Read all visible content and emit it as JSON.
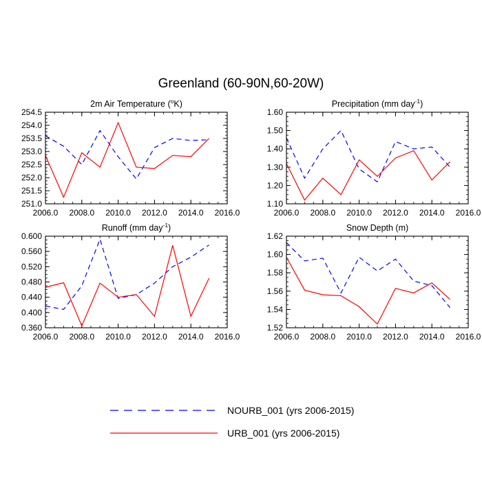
{
  "figure": {
    "title": "Greenland (60-90N,60-20W)"
  },
  "chart_data": [
    {
      "type": "line",
      "title": "2m Air Temperature (",
      "title_sup": "o",
      "title_tail": "K)",
      "x": [
        2006,
        2007,
        2008,
        2009,
        2010,
        2011,
        2012,
        2013,
        2014,
        2015
      ],
      "xlim": [
        2006,
        2016
      ],
      "xticks": [
        "2006.0",
        "2008.0",
        "2010.0",
        "2012.0",
        "2014.0",
        "2016.0"
      ],
      "ylim": [
        251.0,
        254.5
      ],
      "yticks": [
        "251.0",
        "251.5",
        "252.0",
        "252.5",
        "253.0",
        "253.5",
        "254.0",
        "254.5"
      ],
      "series": [
        {
          "name": "NOURB_001 (yrs 2006-2015)",
          "values": [
            253.6,
            253.2,
            252.5,
            253.8,
            252.8,
            251.95,
            253.15,
            253.5,
            253.42,
            253.45
          ]
        },
        {
          "name": "URB_001 (yrs 2006-2015)",
          "values": [
            252.85,
            251.25,
            252.95,
            252.4,
            254.1,
            252.4,
            252.35,
            252.85,
            252.8,
            253.5
          ]
        }
      ]
    },
    {
      "type": "line",
      "title": "Precipitation (mm day",
      "title_sup": "-1",
      "title_tail": ")",
      "x": [
        2006,
        2007,
        2008,
        2009,
        2010,
        2011,
        2012,
        2013,
        2014,
        2015
      ],
      "xlim": [
        2006,
        2016
      ],
      "xticks": [
        "2006.0",
        "2008.0",
        "2010.0",
        "2012.0",
        "2014.0",
        "2016.0"
      ],
      "ylim": [
        1.1,
        1.6
      ],
      "yticks": [
        "1.10",
        "1.20",
        "1.30",
        "1.40",
        "1.50",
        "1.60"
      ],
      "series": [
        {
          "name": "NOURB_001 (yrs 2006-2015)",
          "values": [
            1.46,
            1.24,
            1.4,
            1.5,
            1.29,
            1.22,
            1.44,
            1.4,
            1.41,
            1.3
          ]
        },
        {
          "name": "URB_001 (yrs 2006-2015)",
          "values": [
            1.32,
            1.12,
            1.24,
            1.15,
            1.34,
            1.25,
            1.35,
            1.39,
            1.23,
            1.33
          ]
        }
      ]
    },
    {
      "type": "line",
      "title": "Runoff (mm day",
      "title_sup": "-1",
      "title_tail": ")",
      "x": [
        2006,
        2007,
        2008,
        2009,
        2010,
        2011,
        2012,
        2013,
        2014,
        2015
      ],
      "xlim": [
        2006,
        2016
      ],
      "xticks": [
        "2006.0",
        "2008.0",
        "2010.0",
        "2012.0",
        "2014.0",
        "2016.0"
      ],
      "ylim": [
        0.36,
        0.6
      ],
      "yticks": [
        "0.360",
        "0.400",
        "0.440",
        "0.480",
        "0.520",
        "0.560",
        "0.600"
      ],
      "series": [
        {
          "name": "NOURB_001 (yrs 2006-2015)",
          "values": [
            0.417,
            0.408,
            0.47,
            0.592,
            0.437,
            0.447,
            0.477,
            0.52,
            0.545,
            0.577
          ]
        },
        {
          "name": "URB_001 (yrs 2006-2015)",
          "values": [
            0.466,
            0.478,
            0.365,
            0.477,
            0.44,
            0.447,
            0.39,
            0.576,
            0.39,
            0.49
          ]
        }
      ]
    },
    {
      "type": "line",
      "title": "Snow Depth (m)",
      "title_sup": "",
      "title_tail": "",
      "x": [
        2006,
        2007,
        2008,
        2009,
        2010,
        2011,
        2012,
        2013,
        2014,
        2015
      ],
      "xlim": [
        2006,
        2016
      ],
      "xticks": [
        "2006.0",
        "2008.0",
        "2010.0",
        "2012.0",
        "2014.0",
        "2016.0"
      ],
      "ylim": [
        1.52,
        1.62
      ],
      "yticks": [
        "1.52",
        "1.54",
        "1.56",
        "1.58",
        "1.60",
        "1.62"
      ],
      "series": [
        {
          "name": "NOURB_001 (yrs 2006-2015)",
          "values": [
            1.613,
            1.593,
            1.596,
            1.558,
            1.597,
            1.582,
            1.595,
            1.571,
            1.566,
            1.542
          ]
        },
        {
          "name": "URB_001 (yrs 2006-2015)",
          "values": [
            1.597,
            1.561,
            1.556,
            1.555,
            1.543,
            1.524,
            1.563,
            1.558,
            1.569,
            1.551
          ]
        }
      ]
    }
  ],
  "legend": [
    {
      "label": "NOURB_001 (yrs 2006-2015)",
      "color": "#0000ff",
      "dash": true
    },
    {
      "label": "URB_001 (yrs 2006-2015)",
      "color": "#ff0000",
      "dash": false
    }
  ],
  "colors": {
    "nourb": "#0000ff",
    "urb": "#ff0000",
    "axis": "#000000"
  }
}
